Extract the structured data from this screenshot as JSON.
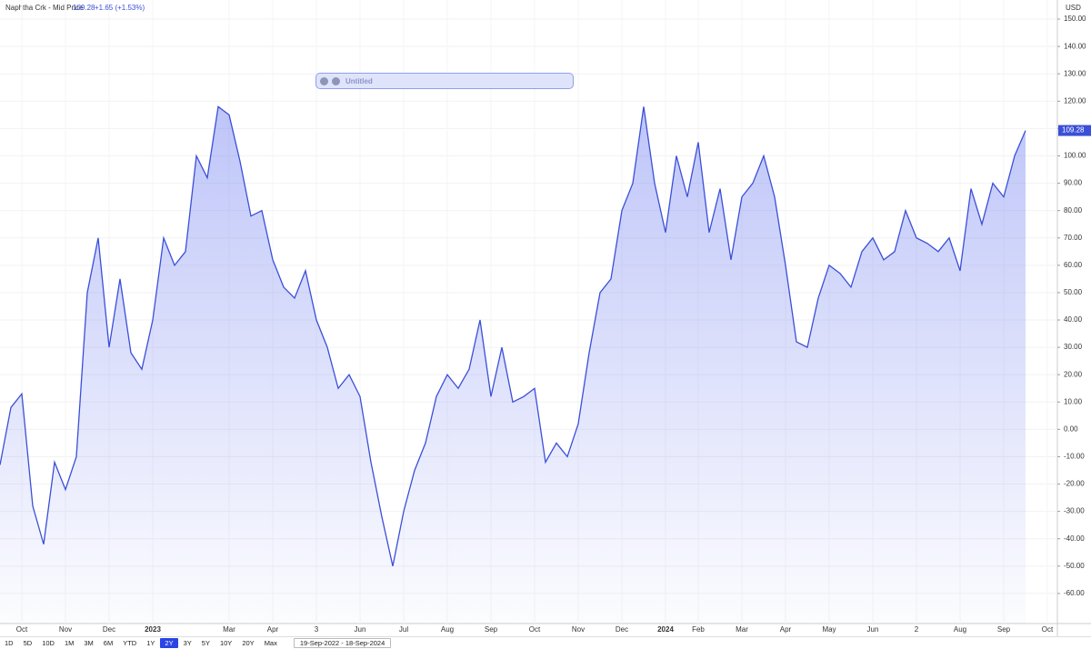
{
  "chart_data": {
    "type": "line",
    "title": "Naphtha Crk - Mid Price",
    "last_price_change": "+1.65 (+1.53%)",
    "y_axis_label": "USD",
    "categories": [
      null,
      null,
      "Oct",
      null,
      null,
      null,
      "Nov",
      null,
      null,
      null,
      "Dec",
      null,
      null,
      null,
      "2023",
      null,
      null,
      null,
      null,
      null,
      null,
      "Mar",
      null,
      null,
      null,
      "Apr",
      null,
      null,
      null,
      "3",
      null,
      null,
      null,
      "Jun",
      null,
      null,
      null,
      "Jul",
      null,
      null,
      null,
      "Aug",
      null,
      null,
      null,
      "Sep",
      null,
      null,
      null,
      "Oct",
      null,
      null,
      null,
      "Nov",
      null,
      null,
      null,
      "Dec",
      null,
      null,
      null,
      "2024",
      null,
      null,
      "Feb",
      null,
      null,
      null,
      "Mar",
      null,
      null,
      null,
      "Apr",
      null,
      null,
      null,
      "May",
      null,
      null,
      null,
      "Jun",
      null,
      null,
      null,
      "2",
      null,
      null,
      null,
      "Aug",
      null,
      null,
      null,
      "Sep",
      null,
      null,
      null,
      "Oct"
    ],
    "series": [
      {
        "name": "Naphtha Crk",
        "color": "#3b4fd8",
        "values": [
          -13,
          8,
          13,
          -28,
          -42,
          -12,
          -22,
          -10,
          50,
          70,
          30,
          55,
          28,
          22,
          40,
          70,
          60,
          65,
          100,
          92,
          118,
          115,
          98,
          78,
          80,
          62,
          52,
          48,
          58,
          40,
          30,
          15,
          20,
          12,
          -12,
          -32,
          -50,
          -30,
          -15,
          -5,
          12,
          20,
          15,
          22,
          40,
          12,
          30,
          10,
          12,
          15,
          -12,
          -5,
          -10,
          2,
          28,
          50,
          55,
          80,
          90,
          118,
          90,
          72,
          100,
          85,
          105,
          72,
          88,
          62,
          85,
          90,
          100,
          85,
          60,
          32,
          30,
          48,
          60,
          57,
          52,
          65,
          70,
          62,
          65,
          80,
          70,
          68,
          65,
          70,
          58,
          88,
          75,
          90,
          85,
          100,
          109.28,
          null,
          null
        ]
      }
    ],
    "ylim": [
      -71,
      157
    ],
    "yticks": [
      {
        "value": 150,
        "label": "150.00"
      },
      {
        "value": 140,
        "label": "140.00"
      },
      {
        "value": 130,
        "label": "130.00"
      },
      {
        "value": 120,
        "label": "120.00"
      },
      {
        "value": 110,
        "label": "110.00"
      },
      {
        "value": 100,
        "label": "100.00"
      },
      {
        "value": 90,
        "label": "90.00"
      },
      {
        "value": 80,
        "label": "80.00"
      },
      {
        "value": 70,
        "label": "70.00"
      },
      {
        "value": 60,
        "label": "60.00"
      },
      {
        "value": 50,
        "label": "50.00"
      },
      {
        "value": 40,
        "label": "40.00"
      },
      {
        "value": 30,
        "label": "30.00"
      },
      {
        "value": 20,
        "label": "20.00"
      },
      {
        "value": 10,
        "label": "10.00"
      },
      {
        "value": 0,
        "label": "0.00"
      },
      {
        "value": -10,
        "label": "-10.00"
      },
      {
        "value": -20,
        "label": "-20.00"
      },
      {
        "value": -30,
        "label": "-30.00"
      },
      {
        "value": -40,
        "label": "-40.00"
      },
      {
        "value": -50,
        "label": "-50.00"
      },
      {
        "value": -60,
        "label": "-60.00"
      }
    ],
    "grid": true
  },
  "ui": {
    "drawing_label": "Untitled",
    "ranges": [
      "1D",
      "5D",
      "10D",
      "1M",
      "3M",
      "6M",
      "YTD",
      "1Y",
      "2Y",
      "3Y",
      "5Y",
      "10Y",
      "20Y",
      "Max"
    ],
    "active_range": "2Y",
    "date_range": "19-Sep-2022 - 18-Sep-2024"
  }
}
